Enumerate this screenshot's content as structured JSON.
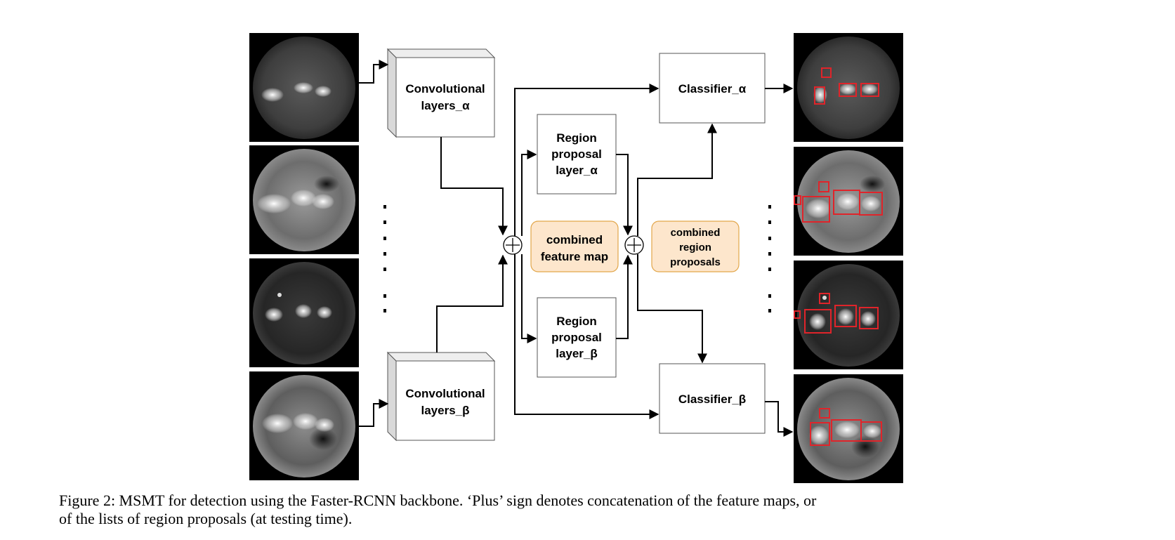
{
  "nodes": {
    "conv_alpha": [
      "Convolutional",
      "layers_α"
    ],
    "conv_beta": [
      "Convolutional",
      "layers_β"
    ],
    "rpn_alpha": [
      "Region",
      "proposal",
      "layer_α"
    ],
    "rpn_beta": [
      "Region",
      "proposal",
      "layer_β"
    ],
    "classifier_alpha": "Classifier_α",
    "classifier_beta": "Classifier_β",
    "combined_feature_map": [
      "combined",
      "feature map"
    ],
    "combined_region_proposals": [
      "combined",
      "region",
      "proposals"
    ]
  },
  "colors": {
    "combined_fill": "#fde6cc",
    "combined_stroke": "#e2a64a",
    "detection_box": "#e0242a"
  },
  "caption": {
    "line1": "Figure 2: MSMT for detection using the Faster-RCNN backbone. ‘Plus’ sign denotes concatenation of the feature maps, or",
    "line2": "of the lists of region proposals (at testing time)."
  }
}
